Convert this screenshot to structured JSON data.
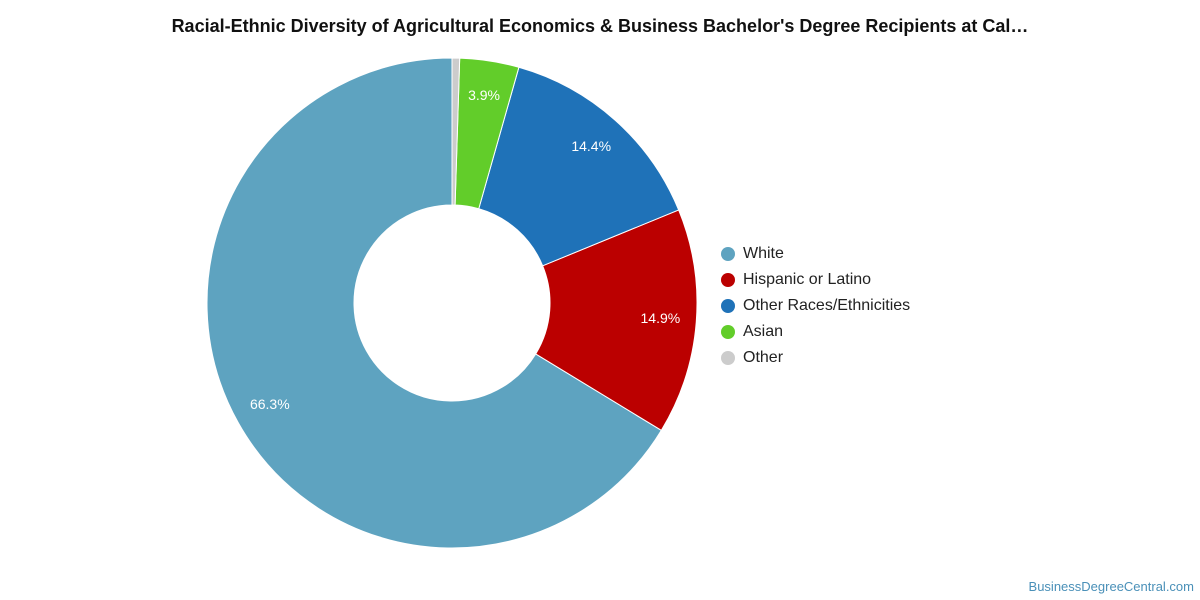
{
  "title": "Racial-Ethnic Diversity of Agricultural Economics & Business Bachelor's Degree Recipients at Cal…",
  "watermark": "BusinessDegreeCentral.com",
  "chart_data": {
    "type": "pie",
    "style": "donut",
    "title": "Racial-Ethnic Diversity of Agricultural Economics & Business Bachelor's Degree Recipients at Cal…",
    "unit": "%",
    "legend_position": "right",
    "series": [
      {
        "name": "White",
        "value": 66.3,
        "label": "66.3%",
        "color": "#5ea3c0"
      },
      {
        "name": "Hispanic or Latino",
        "value": 14.9,
        "label": "14.9%",
        "color": "#bb0000"
      },
      {
        "name": "Other Races/Ethnicities",
        "value": 14.4,
        "label": "14.4%",
        "color": "#1f72b8"
      },
      {
        "name": "Asian",
        "value": 3.9,
        "label": "3.9%",
        "color": "#62cd2a"
      },
      {
        "name": "Other",
        "value": 0.5,
        "label": "",
        "color": "#cccccc"
      }
    ]
  }
}
